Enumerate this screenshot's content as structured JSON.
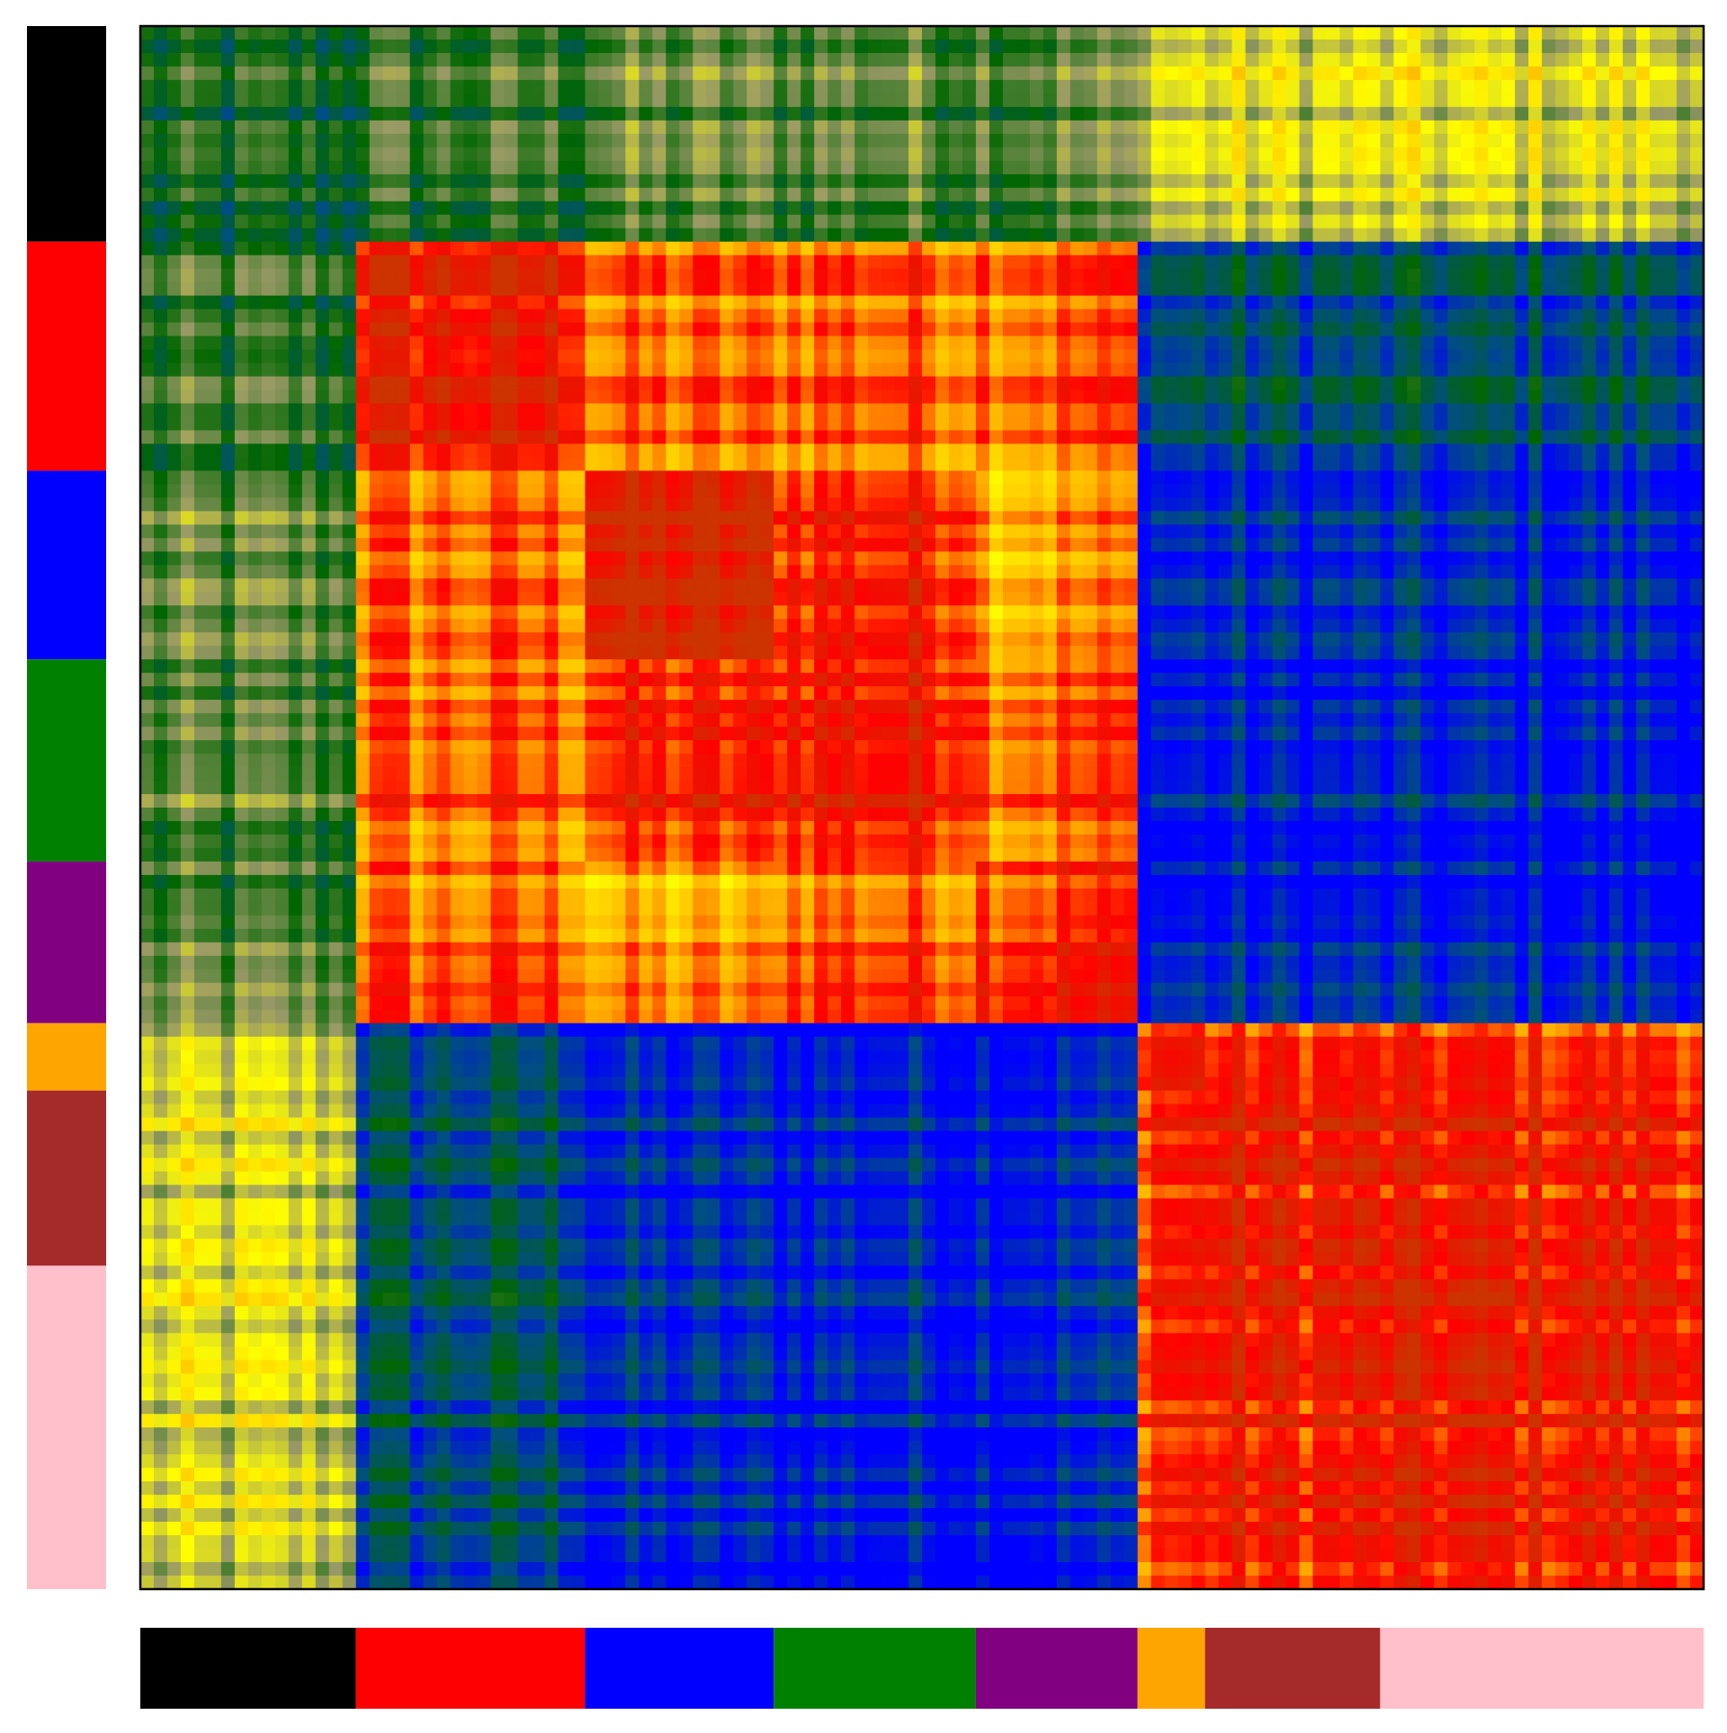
{
  "chart_data": {
    "type": "heatmap",
    "title": "",
    "xlabel": "",
    "ylabel": "",
    "grid": false,
    "legend": "none",
    "n_rows": 116,
    "n_cols": 116,
    "group_colors": [
      "#000000",
      "#ff0000",
      "#0000ff",
      "#008000",
      "#800080",
      "#ffa500",
      "#a52a2a",
      "#ffc0cb"
    ],
    "group_sizes": [
      16,
      17,
      14,
      15,
      12,
      5,
      13,
      24
    ],
    "block_value_matrix": [
      [
        0.25,
        0.3,
        0.35,
        0.35,
        0.35,
        0.5,
        0.5,
        0.5
      ],
      [
        0.3,
        0.9,
        0.75,
        0.78,
        0.78,
        0.15,
        0.15,
        0.15
      ],
      [
        0.35,
        0.75,
        0.95,
        0.85,
        0.7,
        0.05,
        0.05,
        0.05
      ],
      [
        0.35,
        0.78,
        0.85,
        0.9,
        0.8,
        0.05,
        0.05,
        0.05
      ],
      [
        0.35,
        0.78,
        0.7,
        0.8,
        0.85,
        0.05,
        0.05,
        0.05
      ],
      [
        0.5,
        0.15,
        0.05,
        0.05,
        0.05,
        0.9,
        0.85,
        0.85
      ],
      [
        0.5,
        0.15,
        0.05,
        0.05,
        0.05,
        0.85,
        0.9,
        0.88
      ],
      [
        0.5,
        0.15,
        0.05,
        0.05,
        0.05,
        0.85,
        0.88,
        0.9
      ]
    ],
    "colorscale": [
      "#0000ff",
      "#004f7f",
      "#006600",
      "#999966",
      "#ffff00",
      "#ffa500",
      "#ff0000",
      "#cc3300"
    ]
  }
}
